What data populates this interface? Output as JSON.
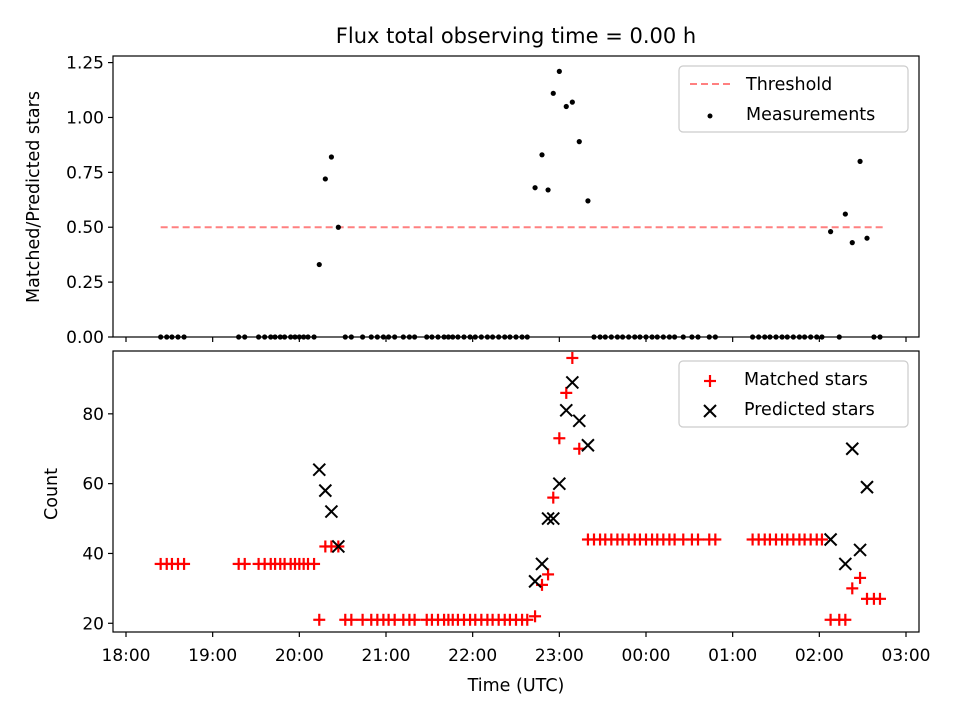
{
  "chart_data": [
    {
      "type": "scatter",
      "title": "Flux total observing time = 0.00 h",
      "xlabel": "",
      "ylabel": "Matched/Predicted stars",
      "ylim": [
        0,
        1.28
      ],
      "yticks": [
        0,
        0.25,
        0.5,
        0.75,
        1.0,
        1.25
      ],
      "yticklabels": [
        "0.00",
        "0.25",
        "0.50",
        "0.75",
        "1.00",
        "1.25"
      ],
      "xlim": [
        -0.15,
        9.15
      ],
      "legend_position": "top-right",
      "colors": {
        "threshold": "#ff8080",
        "measurements": "#000000"
      },
      "series": [
        {
          "name": "Threshold",
          "kind": "dashed-line",
          "x": [
            0.4,
            8.75
          ],
          "y": [
            0.5,
            0.5
          ]
        },
        {
          "name": "Measurements",
          "kind": "points",
          "x": [
            0.4,
            0.47,
            0.53,
            0.6,
            0.67,
            1.3,
            1.37,
            1.53,
            1.6,
            1.67,
            1.72,
            1.78,
            1.83,
            1.9,
            1.95,
            2.0,
            2.05,
            2.1,
            2.17,
            2.23,
            2.3,
            2.37,
            2.45,
            2.53,
            2.6,
            2.73,
            2.83,
            2.9,
            2.97,
            3.03,
            3.1,
            3.2,
            3.27,
            3.33,
            3.47,
            3.53,
            3.6,
            3.67,
            3.72,
            3.77,
            3.83,
            3.9,
            3.97,
            4.03,
            4.1,
            4.17,
            4.23,
            4.3,
            4.37,
            4.43,
            4.5,
            4.57,
            4.63,
            4.72,
            4.8,
            4.87,
            4.93,
            5.0,
            5.08,
            5.15,
            5.23,
            5.33,
            5.4,
            5.47,
            5.53,
            5.6,
            5.67,
            5.73,
            5.8,
            5.87,
            5.93,
            6.0,
            6.07,
            6.13,
            6.2,
            6.27,
            6.33,
            6.43,
            6.53,
            6.6,
            6.73,
            6.8,
            7.23,
            7.3,
            7.37,
            7.43,
            7.5,
            7.57,
            7.63,
            7.7,
            7.77,
            7.83,
            7.9,
            7.97,
            8.03,
            8.13,
            8.23,
            8.3,
            8.38,
            8.47,
            8.55,
            8.63,
            8.7
          ],
          "y": [
            0,
            0,
            0,
            0,
            0,
            0,
            0,
            0,
            0,
            0,
            0,
            0,
            0,
            0,
            0,
            0,
            0,
            0,
            0,
            0.33,
            0.72,
            0.82,
            0.5,
            0,
            0,
            0,
            0,
            0,
            0,
            0,
            0,
            0,
            0,
            0,
            0,
            0,
            0,
            0,
            0,
            0,
            0,
            0,
            0,
            0,
            0,
            0,
            0,
            0,
            0,
            0,
            0,
            0,
            0,
            0.68,
            0.83,
            0.67,
            1.11,
            1.21,
            1.05,
            1.07,
            0.89,
            0.62,
            0,
            0,
            0,
            0,
            0,
            0,
            0,
            0,
            0,
            0,
            0,
            0,
            0,
            0,
            0,
            0,
            0,
            0,
            0,
            0,
            0,
            0,
            0,
            0,
            0,
            0,
            0,
            0,
            0,
            0,
            0,
            0,
            0,
            0.48,
            0,
            0.56,
            0.43,
            0.8,
            0.45,
            0,
            0
          ]
        }
      ]
    },
    {
      "type": "scatter",
      "title": "",
      "xlabel": "Time (UTC)",
      "ylabel": "Count",
      "ylim": [
        17.5,
        98
      ],
      "yticks": [
        20,
        40,
        60,
        80
      ],
      "yticklabels": [
        "20",
        "40",
        "60",
        "80"
      ],
      "xlim": [
        -0.15,
        9.15
      ],
      "xticks": [
        0,
        1,
        2,
        3,
        4,
        5,
        6,
        7,
        8,
        9
      ],
      "xticklabels": [
        "18:00",
        "19:00",
        "20:00",
        "21:00",
        "22:00",
        "23:00",
        "00:00",
        "01:00",
        "02:00",
        "03:00"
      ],
      "legend_position": "top-right",
      "colors": {
        "matched": "#ff0000",
        "predicted": "#000000"
      },
      "series": [
        {
          "name": "Matched stars",
          "marker": "plus",
          "x": [
            0.4,
            0.47,
            0.53,
            0.6,
            0.67,
            1.3,
            1.37,
            1.53,
            1.6,
            1.67,
            1.72,
            1.78,
            1.83,
            1.9,
            1.95,
            2.0,
            2.05,
            2.1,
            2.17,
            2.23,
            2.3,
            2.37,
            2.45,
            2.53,
            2.6,
            2.73,
            2.83,
            2.9,
            2.97,
            3.03,
            3.1,
            3.2,
            3.27,
            3.33,
            3.47,
            3.53,
            3.6,
            3.67,
            3.72,
            3.77,
            3.83,
            3.9,
            3.97,
            4.03,
            4.1,
            4.17,
            4.23,
            4.3,
            4.37,
            4.43,
            4.5,
            4.57,
            4.63,
            4.72,
            4.8,
            4.87,
            4.93,
            5.0,
            5.08,
            5.15,
            5.23,
            5.33,
            5.4,
            5.47,
            5.53,
            5.6,
            5.67,
            5.73,
            5.8,
            5.87,
            5.93,
            6.0,
            6.07,
            6.13,
            6.2,
            6.27,
            6.33,
            6.43,
            6.53,
            6.6,
            6.73,
            6.8,
            7.23,
            7.3,
            7.37,
            7.43,
            7.5,
            7.57,
            7.63,
            7.7,
            7.77,
            7.83,
            7.9,
            7.97,
            8.03,
            8.13,
            8.23,
            8.3,
            8.38,
            8.47,
            8.55,
            8.63,
            8.7
          ],
          "y": [
            37,
            37,
            37,
            37,
            37,
            37,
            37,
            37,
            37,
            37,
            37,
            37,
            37,
            37,
            37,
            37,
            37,
            37,
            37,
            21,
            42,
            42,
            42,
            21,
            21,
            21,
            21,
            21,
            21,
            21,
            21,
            21,
            21,
            21,
            21,
            21,
            21,
            21,
            21,
            21,
            21,
            21,
            21,
            21,
            21,
            21,
            21,
            21,
            21,
            21,
            21,
            21,
            21,
            22,
            31,
            34,
            56,
            73,
            86,
            96,
            70,
            44,
            44,
            44,
            44,
            44,
            44,
            44,
            44,
            44,
            44,
            44,
            44,
            44,
            44,
            44,
            44,
            44,
            44,
            44,
            44,
            44,
            44,
            44,
            44,
            44,
            44,
            44,
            44,
            44,
            44,
            44,
            44,
            44,
            44,
            21,
            21,
            21,
            30,
            33,
            27,
            27,
            27
          ]
        },
        {
          "name": "Predicted stars",
          "marker": "x",
          "x": [
            2.23,
            2.3,
            2.37,
            2.45,
            4.72,
            4.8,
            4.87,
            4.93,
            5.0,
            5.08,
            5.15,
            5.23,
            5.33,
            8.13,
            8.3,
            8.38,
            8.47,
            8.55
          ],
          "y": [
            64,
            58,
            52,
            42,
            32,
            37,
            50,
            50,
            60,
            81,
            89,
            78,
            71,
            44,
            37,
            70,
            41,
            59
          ]
        }
      ]
    }
  ]
}
